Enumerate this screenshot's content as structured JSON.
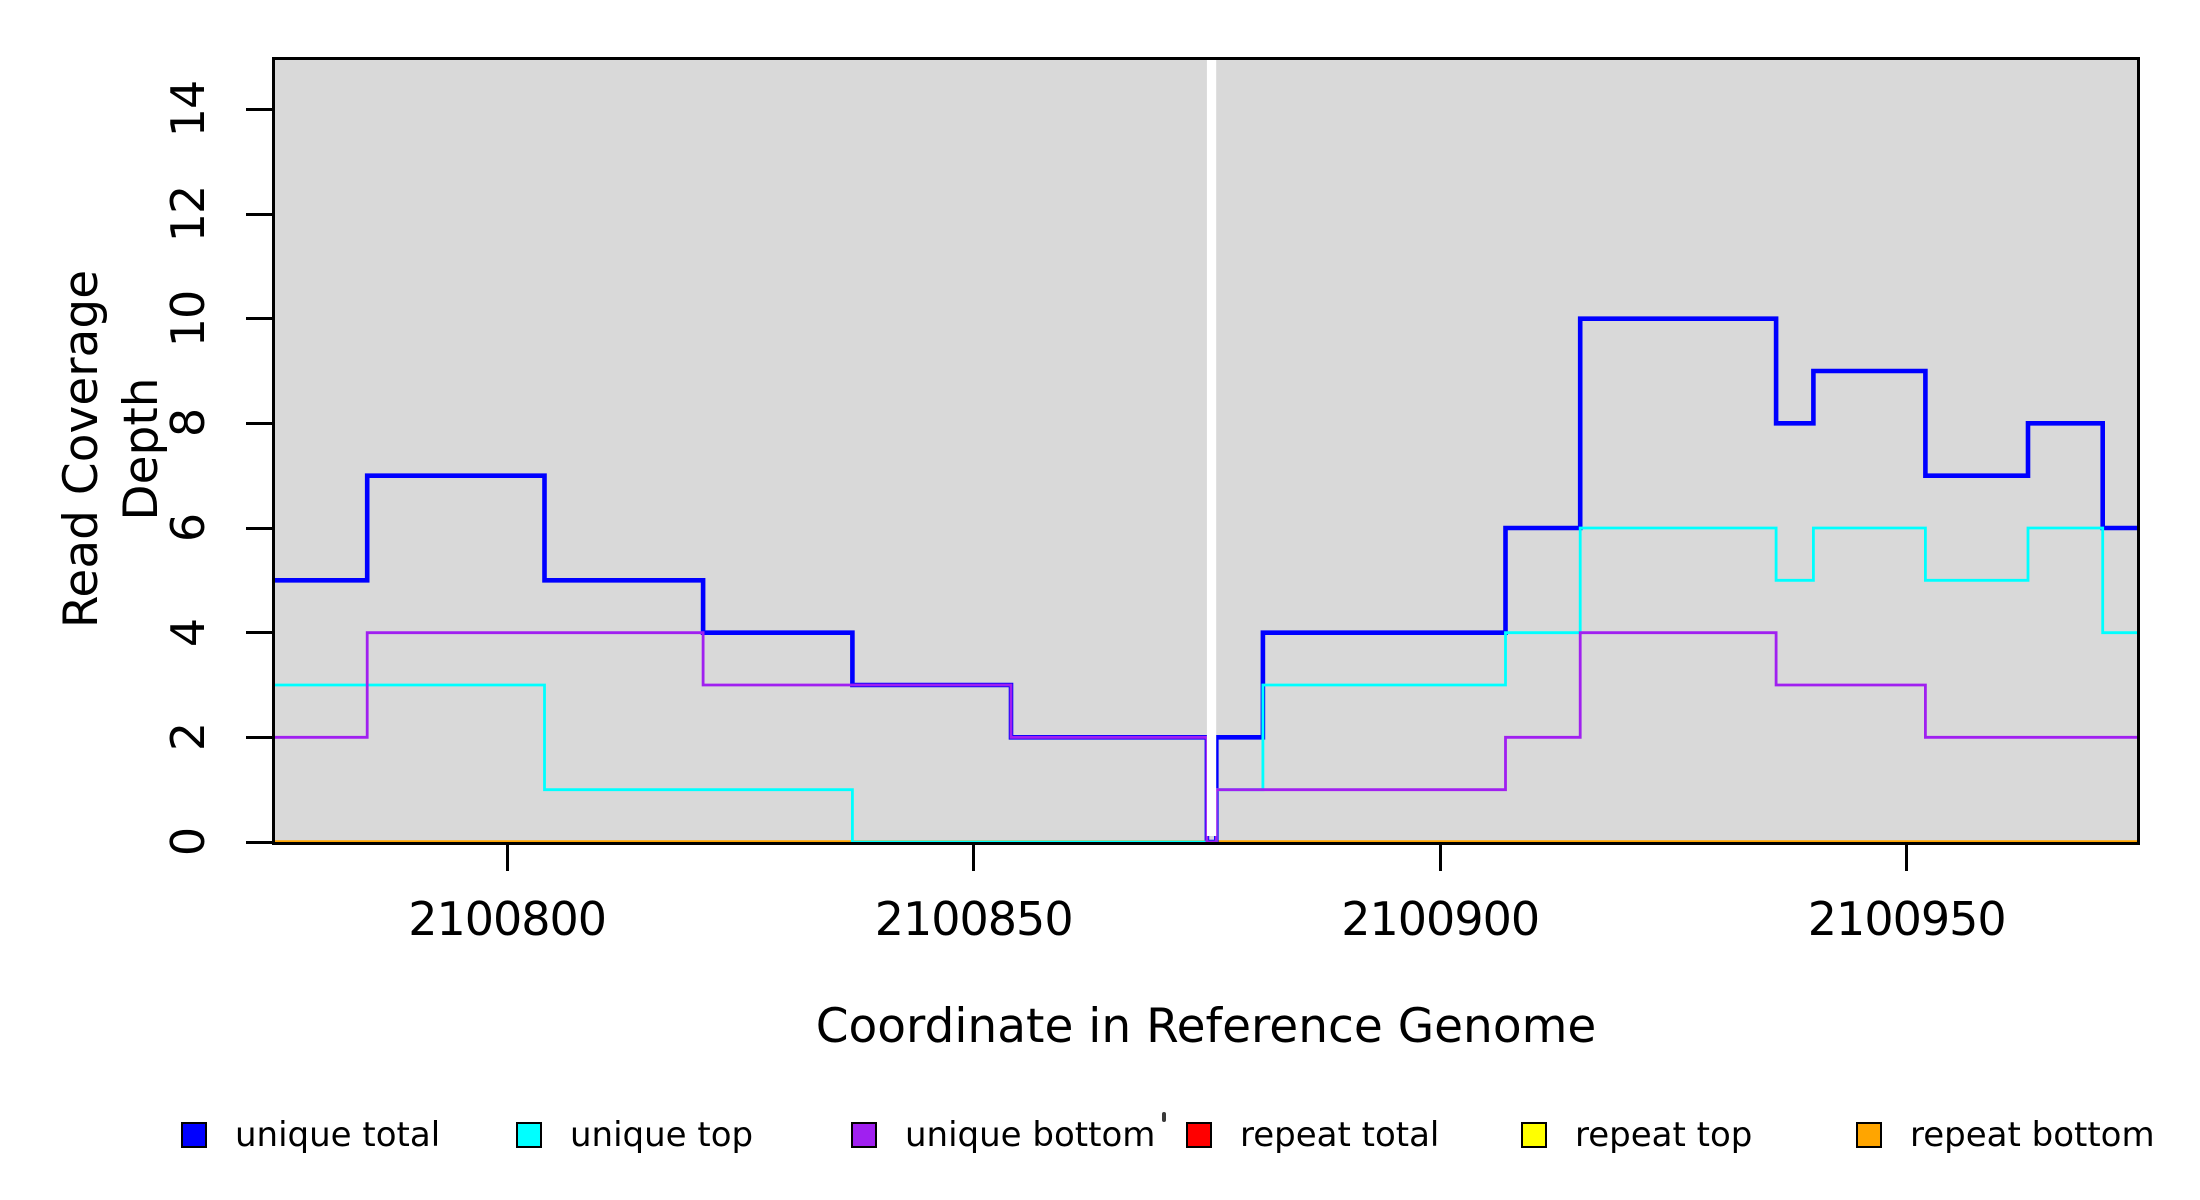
{
  "figure": {
    "background": "#ffffff",
    "plot_background": "#d9d9d9",
    "border_color": "#000000",
    "no_data_gap_color": "#ffffff"
  },
  "axes": {
    "x": {
      "title": "Coordinate in Reference Genome",
      "tick_labels": [
        "2100800",
        "2100850",
        "2100900",
        "2100950"
      ],
      "tick_values": [
        2100800,
        2100850,
        2100900,
        2100950
      ],
      "range": [
        2100774.8,
        2100975.0
      ]
    },
    "y": {
      "title": "Read Coverage Depth",
      "tick_labels": [
        "0",
        "2",
        "4",
        "6",
        "8",
        "10",
        "12",
        "14"
      ],
      "tick_values": [
        0,
        2,
        4,
        6,
        8,
        10,
        12,
        14
      ],
      "range": [
        0,
        15
      ]
    }
  },
  "chart_data": {
    "type": "step",
    "x_range": [
      2100774.8,
      2100975.0
    ],
    "y_range": [
      0,
      15
    ],
    "grid": false,
    "legend_position": "bottom",
    "white_gap_x": [
      2100875,
      2100876
    ],
    "series": [
      {
        "name": "unique total",
        "color": "#0000ff",
        "line_width": 4.6,
        "z": 4,
        "steps": [
          [
            2100775,
            5
          ],
          [
            2100785,
            7
          ],
          [
            2100804,
            5
          ],
          [
            2100821,
            4
          ],
          [
            2100837,
            3
          ],
          [
            2100854,
            2
          ],
          [
            2100875,
            0
          ],
          [
            2100876,
            2
          ],
          [
            2100881,
            4
          ],
          [
            2100907,
            6
          ],
          [
            2100915,
            10
          ],
          [
            2100936,
            8
          ],
          [
            2100940,
            9
          ],
          [
            2100952,
            7
          ],
          [
            2100963,
            8
          ],
          [
            2100971,
            6
          ]
        ]
      },
      {
        "name": "unique top",
        "color": "#00ffff",
        "line_width": 2.8,
        "z": 5,
        "steps": [
          [
            2100775,
            3
          ],
          [
            2100804,
            1
          ],
          [
            2100837,
            0
          ],
          [
            2100876,
            1
          ],
          [
            2100881,
            3
          ],
          [
            2100907,
            4
          ],
          [
            2100915,
            6
          ],
          [
            2100936,
            5
          ],
          [
            2100940,
            6
          ],
          [
            2100952,
            5
          ],
          [
            2100963,
            6
          ],
          [
            2100971,
            4
          ]
        ]
      },
      {
        "name": "unique bottom",
        "color": "#a020f0",
        "line_width": 2.8,
        "z": 6,
        "steps": [
          [
            2100775,
            2
          ],
          [
            2100785,
            4
          ],
          [
            2100821,
            3
          ],
          [
            2100854,
            2
          ],
          [
            2100875,
            0
          ],
          [
            2100876,
            1
          ],
          [
            2100907,
            2
          ],
          [
            2100915,
            4
          ],
          [
            2100936,
            3
          ],
          [
            2100952,
            2
          ]
        ]
      },
      {
        "name": "repeat total",
        "color": "#ff0000",
        "line_width": 3,
        "z": 1,
        "steps": [
          [
            2100775,
            0
          ]
        ]
      },
      {
        "name": "repeat top",
        "color": "#ffff00",
        "line_width": 3,
        "z": 2,
        "steps": [
          [
            2100775,
            0
          ]
        ]
      },
      {
        "name": "repeat bottom",
        "color": "#ffa500",
        "line_width": 3.6,
        "z": 3,
        "steps": [
          [
            2100775,
            0
          ]
        ]
      }
    ]
  }
}
